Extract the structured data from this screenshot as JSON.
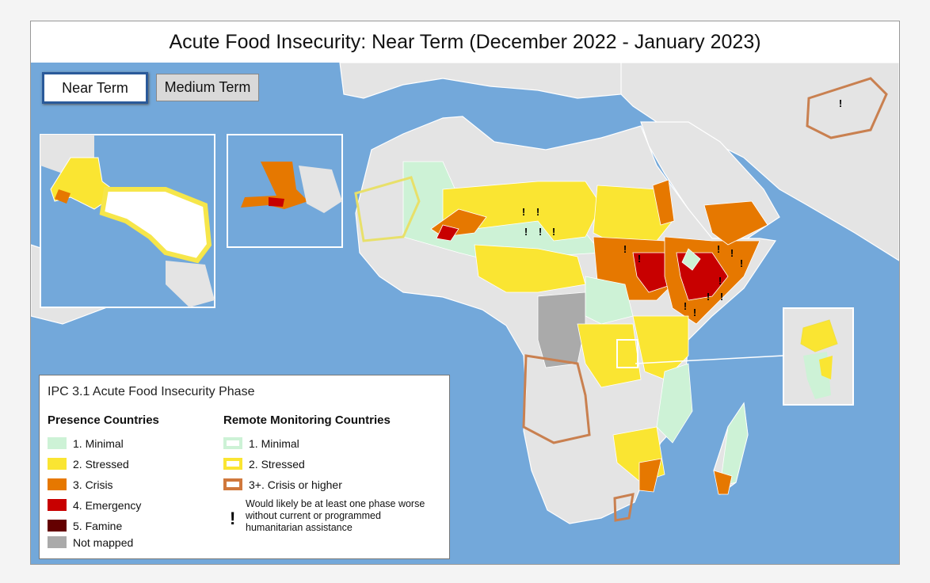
{
  "header": {
    "title": "Acute Food Insecurity: Near Term (December 2022 - January 2023)"
  },
  "tabs": [
    "Near Term",
    "Medium Term"
  ],
  "map": {
    "marker": "!"
  },
  "legend": {
    "title": "IPC 3.1 Acute Food Insecurity Phase",
    "presence": {
      "heading": "Presence Countries",
      "items": [
        {
          "label": "1. Minimal",
          "color": "#cdf2d6"
        },
        {
          "label": "2. Stressed",
          "color": "#fae532"
        },
        {
          "label": "3. Crisis",
          "color": "#e67800"
        },
        {
          "label": "4. Emergency",
          "color": "#c80000"
        },
        {
          "label": "5. Famine",
          "color": "#640000"
        },
        {
          "label": "Not mapped",
          "color": "#aaaaaa"
        }
      ]
    },
    "remote": {
      "heading": "Remote Monitoring Countries",
      "items": [
        {
          "label": "1. Minimal",
          "color": "#cdf2d6"
        },
        {
          "label": "2. Stressed",
          "color": "#fae532"
        },
        {
          "label": "3+. Crisis or higher",
          "color": "#d0783c"
        }
      ]
    },
    "note_symbol": "!",
    "note": "Would likely be at least one phase worse without current or programmed humanitarian assistance"
  }
}
